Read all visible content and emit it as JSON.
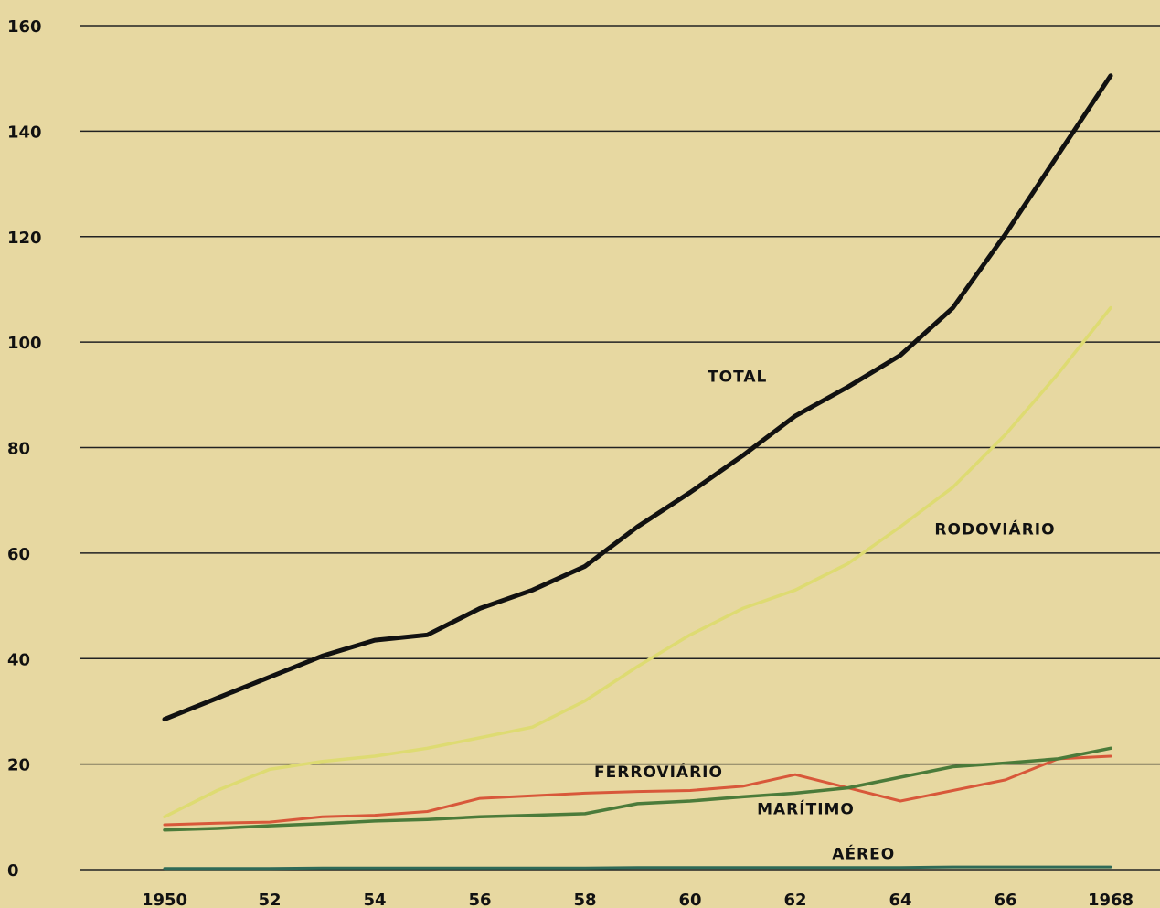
{
  "chart_data": {
    "type": "line",
    "title": "",
    "xlabel": "",
    "ylabel": "",
    "x": [
      1950,
      1951,
      1952,
      1953,
      1954,
      1955,
      1956,
      1957,
      1958,
      1959,
      1960,
      1961,
      1962,
      1963,
      1964,
      1965,
      1966,
      1967,
      1968
    ],
    "x_tick_labels": [
      "1950",
      "52",
      "54",
      "56",
      "58",
      "60",
      "62",
      "64",
      "66",
      "1968"
    ],
    "x_tick_values": [
      1950,
      1952,
      1954,
      1956,
      1958,
      1960,
      1962,
      1964,
      1966,
      1968
    ],
    "y_tick_labels": [
      "0",
      "20",
      "40",
      "60",
      "80",
      "100",
      "120",
      "140",
      "160"
    ],
    "y_tick_values": [
      0,
      20,
      40,
      60,
      80,
      100,
      120,
      140,
      160
    ],
    "xlim": [
      1950,
      1968
    ],
    "ylim": [
      0,
      160
    ],
    "grid": "horizontal",
    "series": [
      {
        "name": "TOTAL",
        "color": "#111111",
        "values": [
          28.5,
          32.5,
          36.5,
          40.5,
          43.5,
          44.5,
          49.5,
          53,
          57.5,
          65,
          71.5,
          78.5,
          86,
          91.5,
          97.5,
          106.5,
          120.5,
          135.5,
          150.5
        ]
      },
      {
        "name": "RODOVIÁRIO",
        "color": "#dedb72",
        "values": [
          10,
          15,
          19,
          20.5,
          21.5,
          23,
          25,
          27,
          32,
          38.5,
          44.5,
          49.5,
          53,
          58,
          65,
          72.5,
          82.5,
          94,
          106.5
        ]
      },
      {
        "name": "FERROVIÁRIO",
        "color": "#d8583a",
        "values": [
          8.5,
          8.8,
          9,
          10,
          10.3,
          11,
          13.5,
          14,
          14.5,
          14.8,
          15,
          15.8,
          18,
          15.5,
          13,
          15,
          17,
          21,
          21.5
        ]
      },
      {
        "name": "MARÍTIMO",
        "color": "#4b7b3a",
        "values": [
          7.5,
          7.8,
          8.3,
          8.7,
          9.2,
          9.5,
          10,
          10.3,
          10.6,
          12.5,
          13,
          13.8,
          14.5,
          15.5,
          17.5,
          19.5,
          20.2,
          21,
          23
        ]
      },
      {
        "name": "AÉREO",
        "color": "#2f6a57",
        "values": [
          0.2,
          0.2,
          0.2,
          0.3,
          0.3,
          0.3,
          0.3,
          0.3,
          0.3,
          0.4,
          0.4,
          0.4,
          0.4,
          0.4,
          0.4,
          0.5,
          0.5,
          0.5,
          0.5
        ]
      }
    ],
    "series_labels": [
      {
        "text": "TOTAL",
        "at_x": 1960.9,
        "at_y": 92.5
      },
      {
        "text": "RODOVIÁRIO",
        "at_x": 1965.8,
        "at_y": 63.5
      },
      {
        "text": "FERROVIÁRIO",
        "at_x": 1959.4,
        "at_y": 17.5
      },
      {
        "text": "MARÍTIMO",
        "at_x": 1962.2,
        "at_y": 10.5
      },
      {
        "text": "AÉREO",
        "at_x": 1963.3,
        "at_y": 2
      }
    ]
  }
}
